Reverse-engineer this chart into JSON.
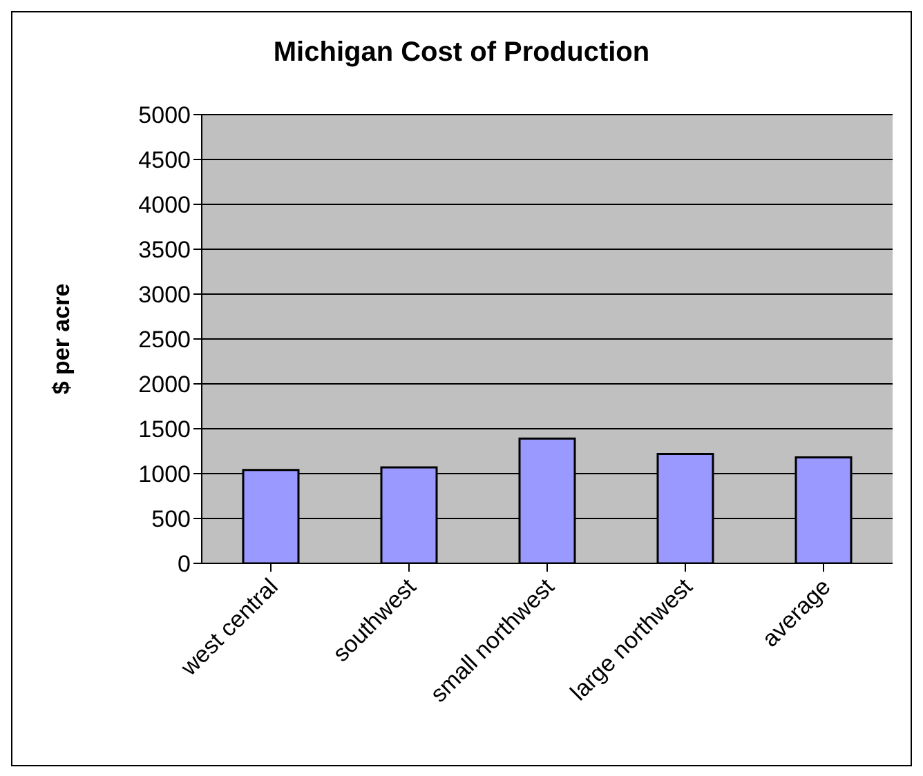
{
  "chart_data": {
    "type": "bar",
    "title": "Michigan Cost of Production",
    "ylabel": "$ per acre",
    "categories": [
      "west central",
      "southwest",
      "small northwest",
      "large northwest",
      "average"
    ],
    "values": [
      1040,
      1070,
      1390,
      1220,
      1180
    ],
    "color": "#9999ff",
    "ylim": [
      0,
      5000
    ],
    "yticks": [
      0,
      500,
      1000,
      1500,
      2000,
      2500,
      3000,
      3500,
      4000,
      4500,
      5000
    ],
    "grid": "y"
  }
}
